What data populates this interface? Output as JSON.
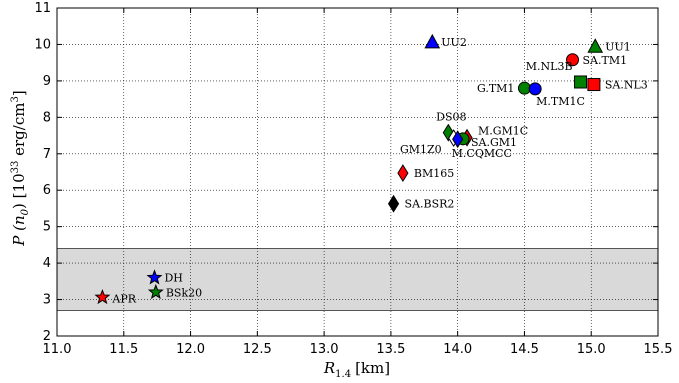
{
  "chart_data": {
    "type": "scatter",
    "xlabel": "R",
    "xlabel_sub": "1.4",
    "xlabel_unit": "[km]",
    "ylabel": "P (n",
    "ylabel_sub": "0",
    "ylabel_mid": ") [10",
    "ylabel_sup": "33",
    "ylabel_unit": " erg/cm",
    "ylabel_sup2": "3",
    "ylabel_end": "]",
    "xlim": [
      11.0,
      15.5
    ],
    "ylim": [
      2.0,
      11.0
    ],
    "xticks": [
      "11.0",
      "11.5",
      "12.0",
      "12.5",
      "13.0",
      "13.5",
      "14.0",
      "14.5",
      "15.0",
      "15.5"
    ],
    "yticks": [
      "2",
      "3",
      "4",
      "5",
      "6",
      "7",
      "8",
      "9",
      "10",
      "11"
    ],
    "grid": true,
    "band": {
      "ymin": 2.7,
      "ymax": 4.4,
      "color": "#d9d9d9"
    },
    "points": [
      {
        "label": "UU2",
        "x": 13.81,
        "y": 10.07,
        "marker": "triangle",
        "color": "#0000ff"
      },
      {
        "label": "UU1",
        "x": 15.03,
        "y": 9.95,
        "marker": "triangle",
        "color": "#008000"
      },
      {
        "label": "SA.TM1",
        "x": 14.86,
        "y": 9.58,
        "marker": "circle",
        "color": "#ff0000"
      },
      {
        "label": "M.NL3B",
        "x": 14.92,
        "y": 8.97,
        "marker": "square",
        "color": "#008000"
      },
      {
        "label": "SA.NL3",
        "x": 15.02,
        "y": 8.9,
        "marker": "square",
        "color": "#ff0000"
      },
      {
        "label": "G.TM1",
        "x": 14.5,
        "y": 8.8,
        "marker": "circle",
        "color": "#008000"
      },
      {
        "label": "M.TM1C",
        "x": 14.58,
        "y": 8.78,
        "marker": "circle",
        "color": "#0000ff"
      },
      {
        "label": "DS08",
        "x": 13.93,
        "y": 7.58,
        "marker": "diamond",
        "color": "#008000"
      },
      {
        "label": "M.GM1C",
        "x": 14.07,
        "y": 7.44,
        "marker": "diamond",
        "color": "#ff0000"
      },
      {
        "label": "SA.GM1",
        "x": 14.04,
        "y": 7.41,
        "marker": "circle",
        "color": "#008000"
      },
      {
        "label": "GM1Z0",
        "x": 13.97,
        "y": 7.43,
        "marker": "diamond",
        "color": "#ffffff"
      },
      {
        "label": "M.CQMCC",
        "x": 14.0,
        "y": 7.4,
        "marker": "diamond",
        "color": "#0000ff"
      },
      {
        "label": "BM165",
        "x": 13.59,
        "y": 6.47,
        "marker": "diamond",
        "color": "#ff0000"
      },
      {
        "label": "SA.BSR2",
        "x": 13.52,
        "y": 5.63,
        "marker": "diamond",
        "color": "#000000"
      },
      {
        "label": "DH",
        "x": 11.73,
        "y": 3.6,
        "marker": "star",
        "color": "#0000ff"
      },
      {
        "label": "BSk20",
        "x": 11.74,
        "y": 3.2,
        "marker": "star",
        "color": "#008000"
      },
      {
        "label": "APR",
        "x": 11.34,
        "y": 3.06,
        "marker": "star",
        "color": "#ff0000"
      }
    ]
  }
}
